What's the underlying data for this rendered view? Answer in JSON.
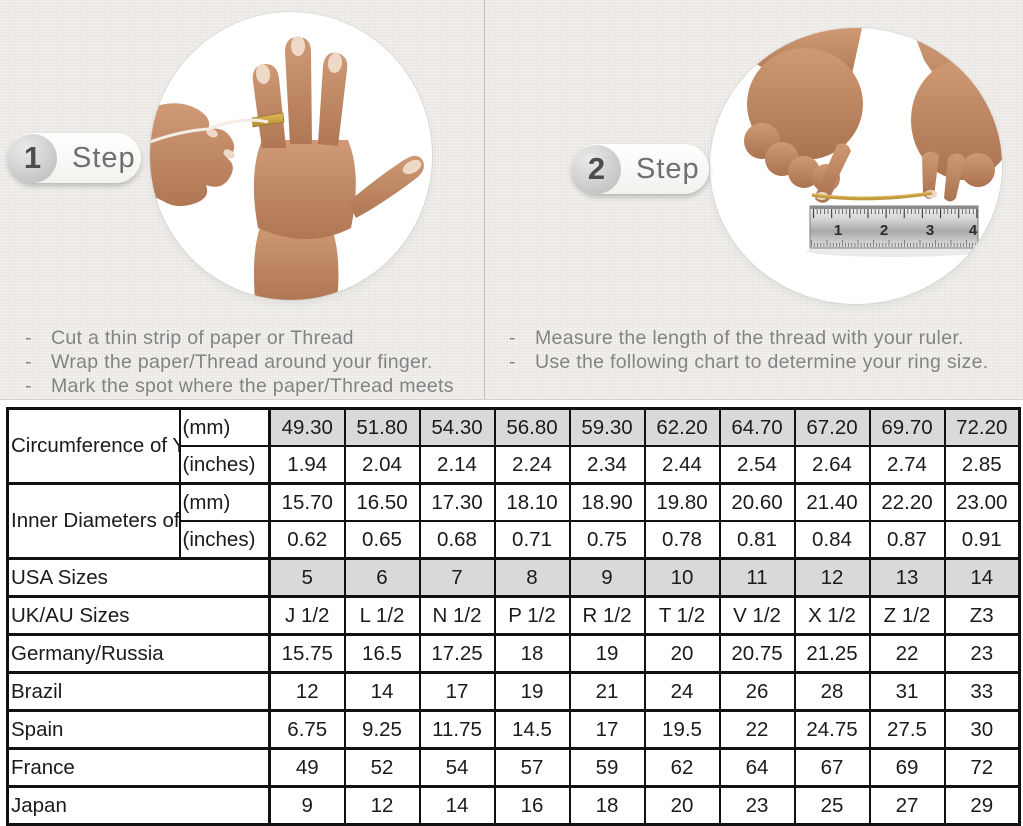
{
  "steps": [
    {
      "number": "1",
      "label": "Step",
      "instructions": [
        "Cut a thin strip of paper or Thread",
        "Wrap the paper/Thread around your finger.",
        "Mark the spot where the paper/Thread meets"
      ]
    },
    {
      "number": "2",
      "label": "Step",
      "instructions": [
        "Measure the length of the thread with your ruler.",
        "Use the following chart to determine your ring size."
      ],
      "ruler_numbers": [
        "1",
        "2",
        "3",
        "4"
      ]
    }
  ],
  "chart_data": {
    "type": "table",
    "shaded_row_indices": [
      0,
      4
    ],
    "rows": [
      {
        "label": "Circumference of Your Finger",
        "unit": "(mm)",
        "values": [
          "49.30",
          "51.80",
          "54.30",
          "56.80",
          "59.30",
          "62.20",
          "64.70",
          "67.20",
          "69.70",
          "72.20"
        ]
      },
      {
        "unit": "(inches)",
        "values": [
          "1.94",
          "2.04",
          "2.14",
          "2.24",
          "2.34",
          "2.44",
          "2.54",
          "2.64",
          "2.74",
          "2.85"
        ]
      },
      {
        "label": "Inner Diameters of Rings",
        "unit": "(mm)",
        "values": [
          "15.70",
          "16.50",
          "17.30",
          "18.10",
          "18.90",
          "19.80",
          "20.60",
          "21.40",
          "22.20",
          "23.00"
        ]
      },
      {
        "unit": "(inches)",
        "values": [
          "0.62",
          "0.65",
          "0.68",
          "0.71",
          "0.75",
          "0.78",
          "0.81",
          "0.84",
          "0.87",
          "0.91"
        ]
      },
      {
        "label": "USA Sizes",
        "values": [
          "5",
          "6",
          "7",
          "8",
          "9",
          "10",
          "11",
          "12",
          "13",
          "14"
        ]
      },
      {
        "label": "UK/AU Sizes",
        "values": [
          "J 1/2",
          "L 1/2",
          "N 1/2",
          "P 1/2",
          "R 1/2",
          "T 1/2",
          "V 1/2",
          "X 1/2",
          "Z 1/2",
          "Z3"
        ]
      },
      {
        "label": "Germany/Russia",
        "values": [
          "15.75",
          "16.5",
          "17.25",
          "18",
          "19",
          "20",
          "20.75",
          "21.25",
          "22",
          "23"
        ]
      },
      {
        "label": "Brazil",
        "values": [
          "12",
          "14",
          "17",
          "19",
          "21",
          "24",
          "26",
          "28",
          "31",
          "33"
        ]
      },
      {
        "label": "Spain",
        "values": [
          "6.75",
          "9.25",
          "11.75",
          "14.5",
          "17",
          "19.5",
          "22",
          "24.75",
          "27.5",
          "30"
        ]
      },
      {
        "label": "France",
        "values": [
          "49",
          "52",
          "54",
          "57",
          "59",
          "62",
          "64",
          "67",
          "69",
          "72"
        ]
      },
      {
        "label": "Japan",
        "values": [
          "9",
          "12",
          "14",
          "16",
          "18",
          "20",
          "23",
          "25",
          "27",
          "29"
        ]
      }
    ]
  },
  "colors": {
    "top_background": "#e9e6e2",
    "table_shaded_cell": "#d9d9d9",
    "table_border": "#111111",
    "thread_gold": "#c29a3e",
    "skin_tone": "#c08a66",
    "instruction_text": "#838383",
    "step_text": "#6f6f6f"
  }
}
